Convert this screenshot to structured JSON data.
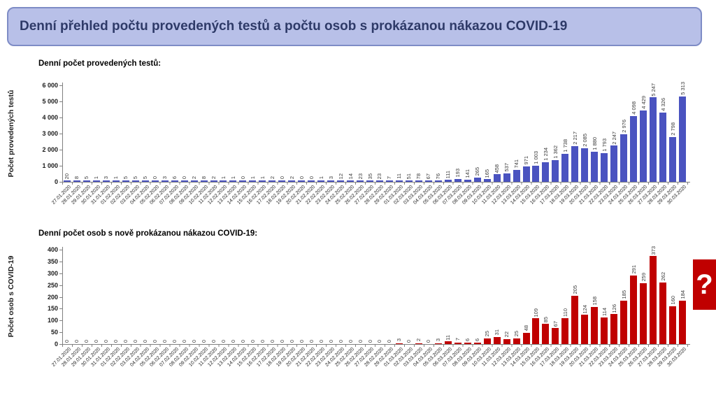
{
  "banner": {
    "title": "Denní přehled počtu provedených testů a počtu osob s prokázanou nákazou COVID-19"
  },
  "colors": {
    "banner_bg": "#b8c0e8",
    "banner_border": "#7e8cc6",
    "banner_text": "#2e3a68",
    "tests_bar": "#4a53c0",
    "cases_bar": "#c00000",
    "axis": "#808080",
    "value_label": "#3a3a3a",
    "unknown_box": "#c00000"
  },
  "chart_data": [
    {
      "type": "bar",
      "title": "Denní počet provedených testů:",
      "ylabel": "Počet provedených testů",
      "xlabel": "",
      "ylim": [
        0,
        6000
      ],
      "ytick_step": 1000,
      "grid": false,
      "legend": "none",
      "categories": [
        "27.01.2020",
        "28.01.2020",
        "29.01.2020",
        "30.01.2020",
        "31.01.2020",
        "01.02.2020",
        "02.02.2020",
        "03.02.2020",
        "04.02.2020",
        "05.02.2020",
        "06.02.2020",
        "07.02.2020",
        "08.02.2020",
        "09.02.2020",
        "10.02.2020",
        "11.02.2020",
        "12.02.2020",
        "13.02.2020",
        "14.02.2020",
        "15.02.2020",
        "16.02.2020",
        "17.02.2020",
        "18.02.2020",
        "19.02.2020",
        "20.02.2020",
        "21.02.2020",
        "22.02.2020",
        "23.02.2020",
        "24.02.2020",
        "25.02.2020",
        "26.02.2020",
        "27.02.2020",
        "28.02.2020",
        "29.02.2020",
        "01.03.2020",
        "02.03.2020",
        "03.03.2020",
        "04.03.2020",
        "05.03.2020",
        "06.03.2020",
        "07.03.2020",
        "08.03.2020",
        "09.03.2020",
        "10.03.2020",
        "11.03.2020",
        "12.03.2020",
        "13.03.2020",
        "14.03.2020",
        "15.03.2020",
        "16.03.2020",
        "17.03.2020",
        "18.03.2020",
        "19.03.2020",
        "20.03.2020",
        "21.03.2020",
        "22.03.2020",
        "23.03.2020",
        "24.03.2020",
        "25.03.2020",
        "26.03.2020",
        "27.03.2020",
        "28.03.2020",
        "29.03.2020",
        "30.03.2020"
      ],
      "values": [
        20,
        8,
        5,
        1,
        3,
        1,
        5,
        5,
        5,
        0,
        3,
        6,
        0,
        2,
        8,
        2,
        1,
        1,
        0,
        1,
        1,
        2,
        0,
        2,
        0,
        0,
        1,
        3,
        12,
        14,
        23,
        35,
        23,
        7,
        11,
        51,
        78,
        67,
        76,
        111,
        193,
        141,
        265,
        165,
        458,
        537,
        741,
        971,
        1003,
        1234,
        1362,
        1738,
        2217,
        2085,
        1880,
        1793,
        2247,
        2976,
        4098,
        4429,
        5247,
        4326,
        2798,
        5313
      ]
    },
    {
      "type": "bar",
      "title": "Denní počet osob s nově prokázanou nákazou COVID-19:",
      "ylabel": "Počet osob s COVID-19",
      "xlabel": "",
      "ylim": [
        0,
        400
      ],
      "ytick_step": 50,
      "grid": false,
      "legend": "none",
      "annotation": "?",
      "categories": [
        "27.01.2020",
        "28.01.2020",
        "29.01.2020",
        "30.01.2020",
        "31.01.2020",
        "01.02.2020",
        "02.02.2020",
        "03.02.2020",
        "04.02.2020",
        "05.02.2020",
        "06.02.2020",
        "07.02.2020",
        "08.02.2020",
        "09.02.2020",
        "10.02.2020",
        "11.02.2020",
        "12.02.2020",
        "13.02.2020",
        "14.02.2020",
        "15.02.2020",
        "16.02.2020",
        "17.02.2020",
        "18.02.2020",
        "19.02.2020",
        "20.02.2020",
        "21.02.2020",
        "22.02.2020",
        "23.02.2020",
        "24.02.2020",
        "25.02.2020",
        "26.02.2020",
        "27.02.2020",
        "28.02.2020",
        "29.02.2020",
        "01.03.2020",
        "02.03.2020",
        "03.03.2020",
        "04.03.2020",
        "05.03.2020",
        "06.03.2020",
        "07.03.2020",
        "08.03.2020",
        "09.03.2020",
        "10.03.2020",
        "11.03.2020",
        "12.03.2020",
        "13.03.2020",
        "14.03.2020",
        "15.03.2020",
        "16.03.2020",
        "17.03.2020",
        "18.03.2020",
        "19.03.2020",
        "20.03.2020",
        "21.03.2020",
        "22.03.2020",
        "23.03.2020",
        "24.03.2020",
        "25.03.2020",
        "26.03.2020",
        "27.03.2020",
        "28.03.2020",
        "29.03.2020",
        "30.03.2020"
      ],
      "values": [
        0,
        0,
        0,
        0,
        0,
        0,
        0,
        0,
        0,
        0,
        0,
        0,
        0,
        0,
        0,
        0,
        0,
        0,
        0,
        0,
        0,
        0,
        0,
        0,
        0,
        0,
        0,
        0,
        0,
        0,
        0,
        0,
        0,
        0,
        3,
        0,
        2,
        0,
        3,
        11,
        7,
        6,
        6,
        25,
        31,
        22,
        25,
        48,
        109,
        85,
        67,
        110,
        205,
        124,
        158,
        114,
        126,
        185,
        291,
        259,
        373,
        262,
        160,
        184
      ]
    }
  ]
}
